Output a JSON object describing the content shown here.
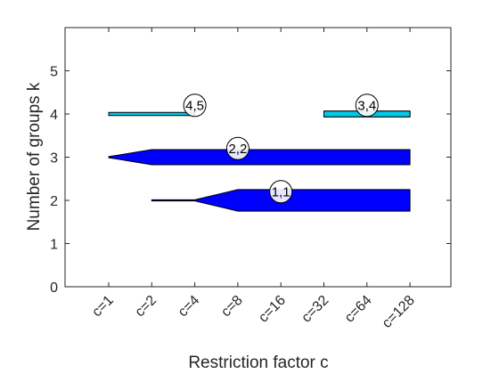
{
  "chart_data": {
    "type": "bar",
    "title": "",
    "xlabel": "Restriction factor c",
    "ylabel": "Number of groups k",
    "categories": [
      "c=1",
      "c=2",
      "c=4",
      "c=8",
      "c=16",
      "c=32",
      "c=64",
      "c=128"
    ],
    "yticks": [
      "0",
      "1",
      "2",
      "3",
      "4",
      "5"
    ],
    "ylim": [
      0,
      6
    ],
    "grid": false,
    "legend": "none",
    "series": [
      {
        "k": 2,
        "label": "1,1",
        "color": "#0000ff",
        "values": [
          null,
          0.02,
          0.02,
          0.5,
          0.5,
          0.5,
          0.5,
          0.5
        ]
      },
      {
        "k": 3,
        "label": "2,2",
        "color": "#0000ff",
        "values": [
          0.02,
          0.35,
          0.35,
          0.35,
          0.35,
          0.35,
          0.35,
          0.35
        ]
      },
      {
        "k": 4,
        "label": "4,5",
        "color": "#00c8e6",
        "values": [
          0.07,
          0.07,
          0.07,
          null,
          null,
          0.13,
          0.13,
          0.13
        ]
      },
      {
        "k": 4,
        "label": "3,4",
        "color": "#00c8e6",
        "values": [
          null,
          null,
          null,
          null,
          null,
          0.13,
          0.13,
          0.13
        ]
      }
    ],
    "annotations": [
      {
        "text": "1,1",
        "x": "c=16",
        "y": 2.2
      },
      {
        "text": "2,2",
        "x": "c=8",
        "y": 3.2
      },
      {
        "text": "4,5",
        "x": "c=4",
        "y": 4.2
      },
      {
        "text": "3,4",
        "x": "c=64",
        "y": 4.2
      }
    ]
  }
}
